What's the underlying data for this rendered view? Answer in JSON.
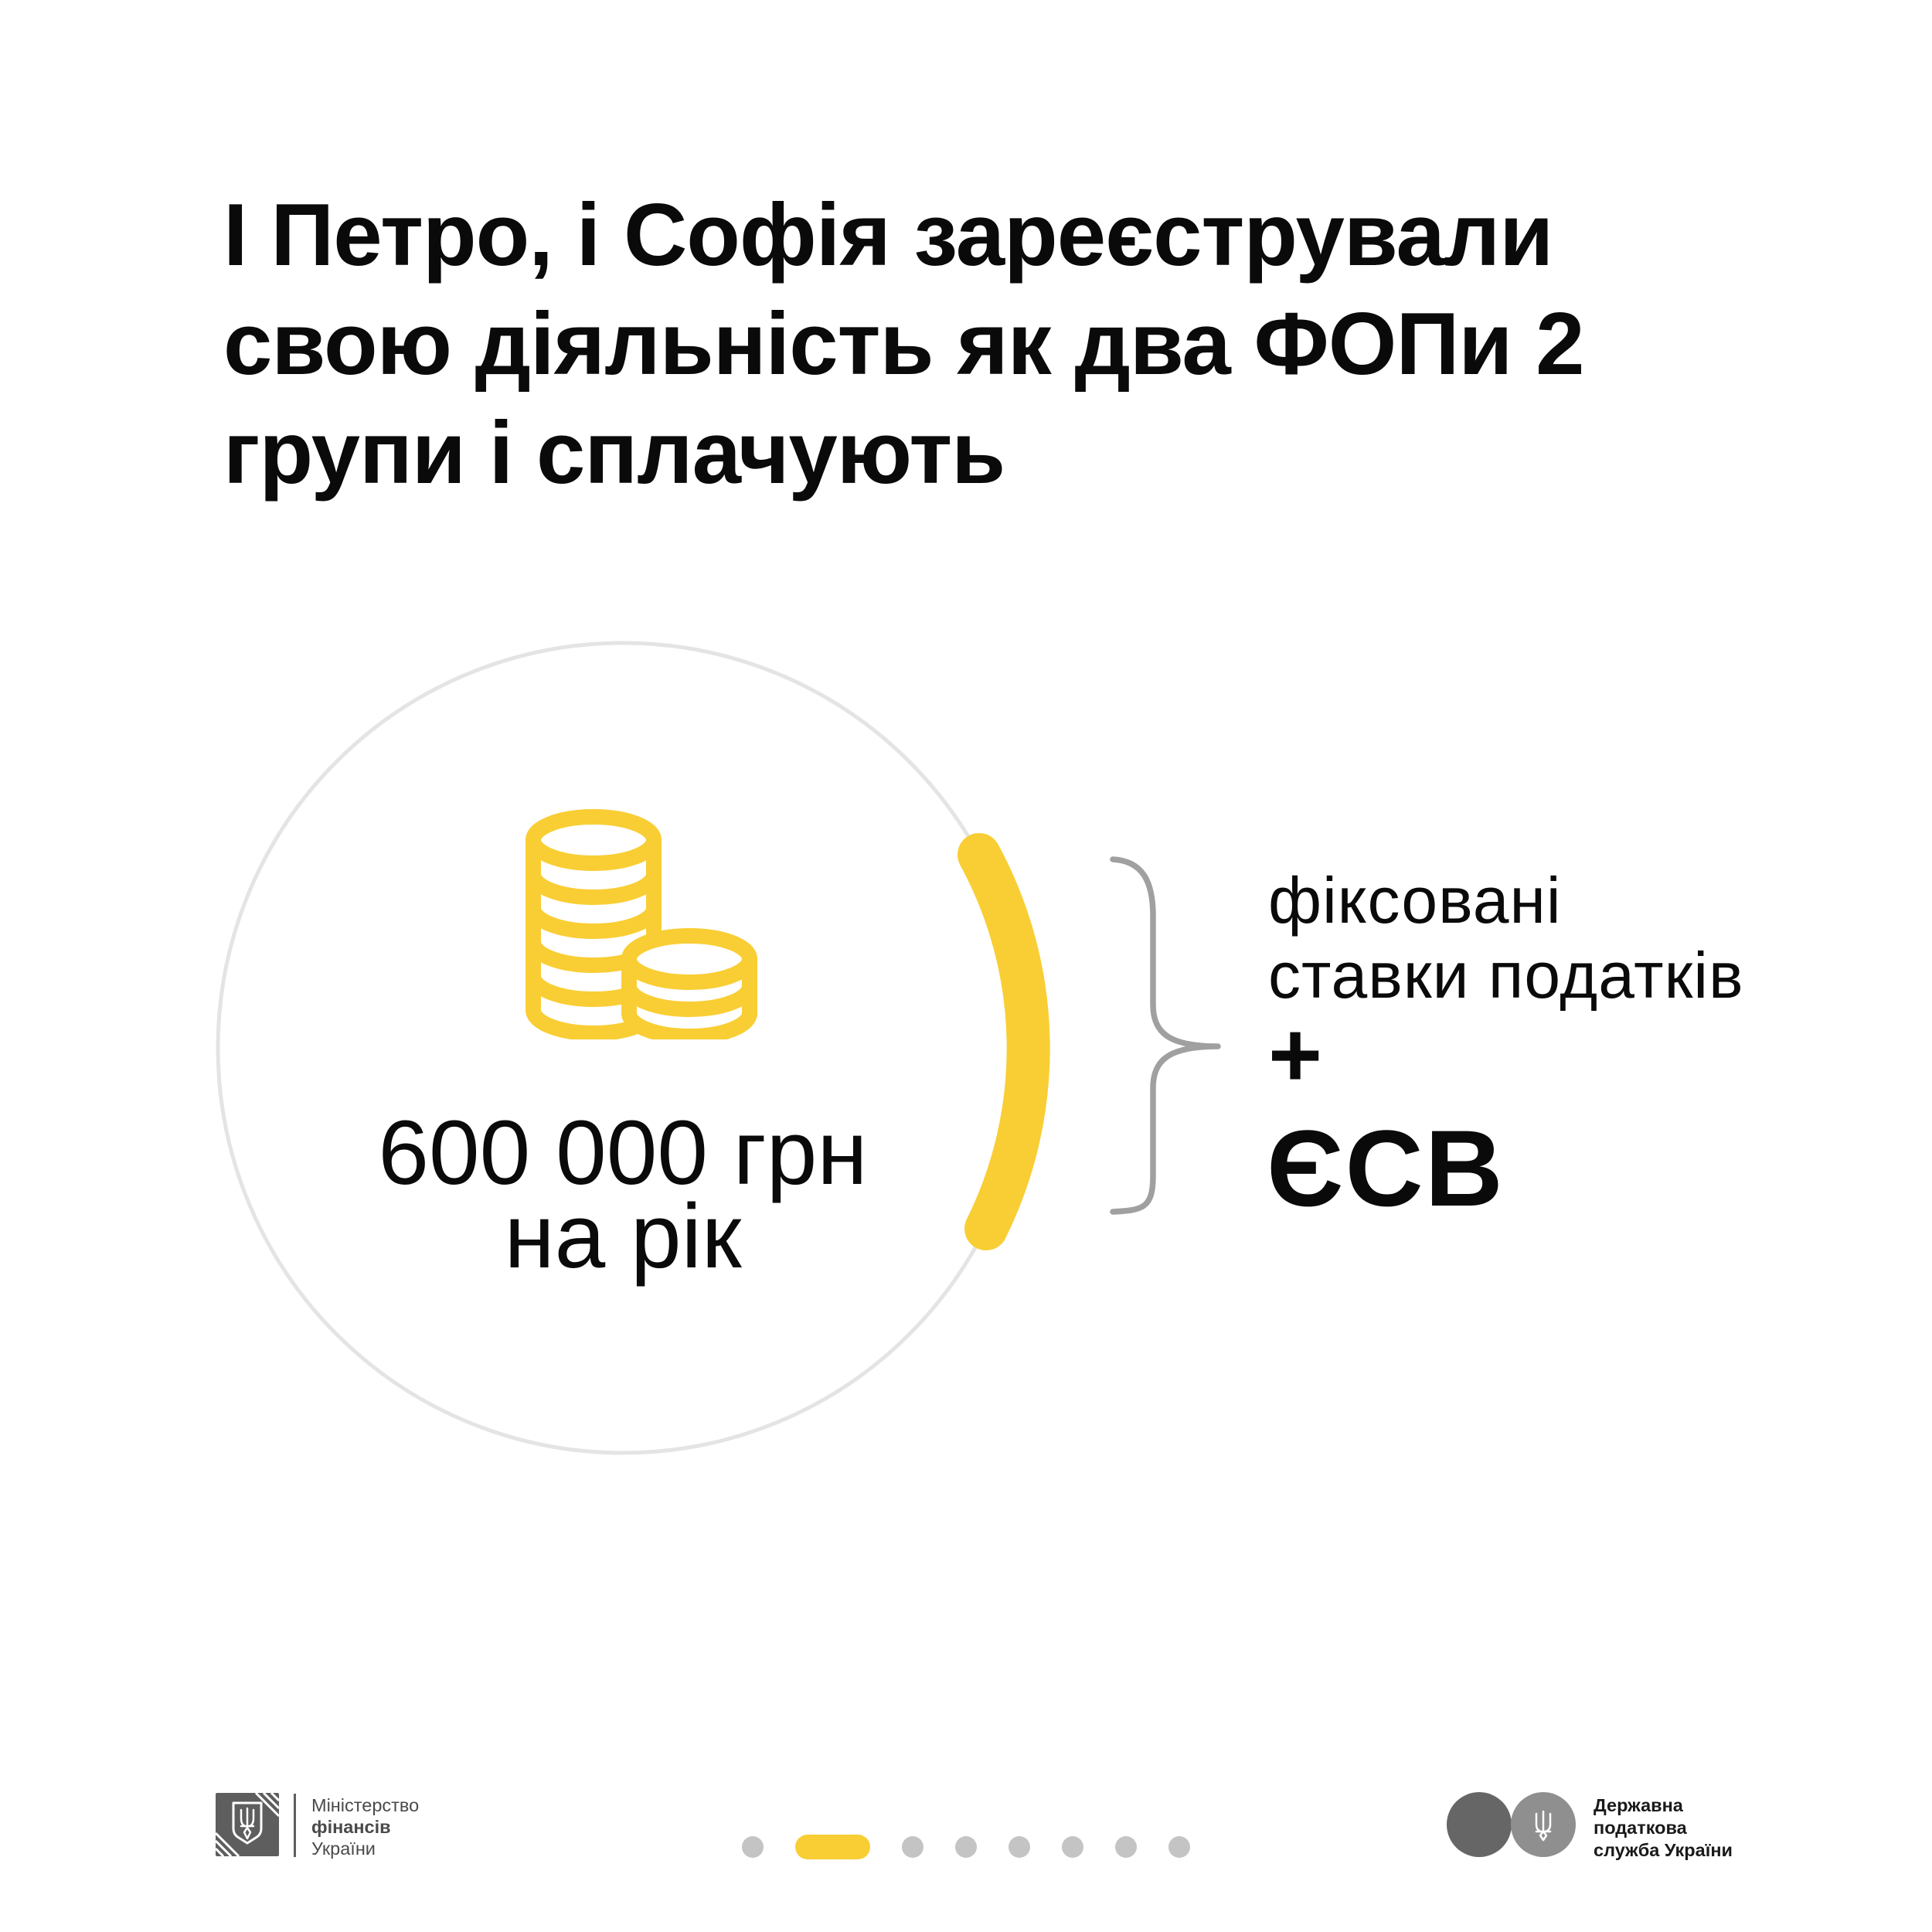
{
  "title": {
    "lines": [
      "І Петро, і Софія зареєстрували",
      "свою діяльність як два ФОПи 2",
      "групи і сплачують"
    ]
  },
  "income": {
    "icon": "coin-stack-icon",
    "amount": "600 000 грн",
    "period": "на рік"
  },
  "payments": {
    "line1": "фіксовані",
    "line2": "ставки податків",
    "plus": "+",
    "line3": "ЄСВ"
  },
  "footer": {
    "minfin": {
      "emblem": "trident-shield-icon",
      "name_line1": "Міністерство",
      "name_line2": "фінансів",
      "name_line3": "України"
    },
    "tax_service": {
      "emblem": "trident-circles-icon",
      "name_line1": "Державна",
      "name_line2": "податкова",
      "name_line3": "служба України"
    },
    "pagination": {
      "total": 8,
      "active_index": 1
    }
  },
  "colors": {
    "accent_yellow": "#F9CE34",
    "circle_outline": "#E4E4E4",
    "brace_gray": "#A0A0A0",
    "text_black": "#0A0A0A",
    "minfin_gray": "#5E5E5E",
    "minfin_text": "#4A4A4A",
    "tax_circle_dark": "#666666",
    "tax_circle_light": "#8F8F8F",
    "tax_text": "#1A1A1A",
    "dot_gray": "#C4C4C4"
  }
}
